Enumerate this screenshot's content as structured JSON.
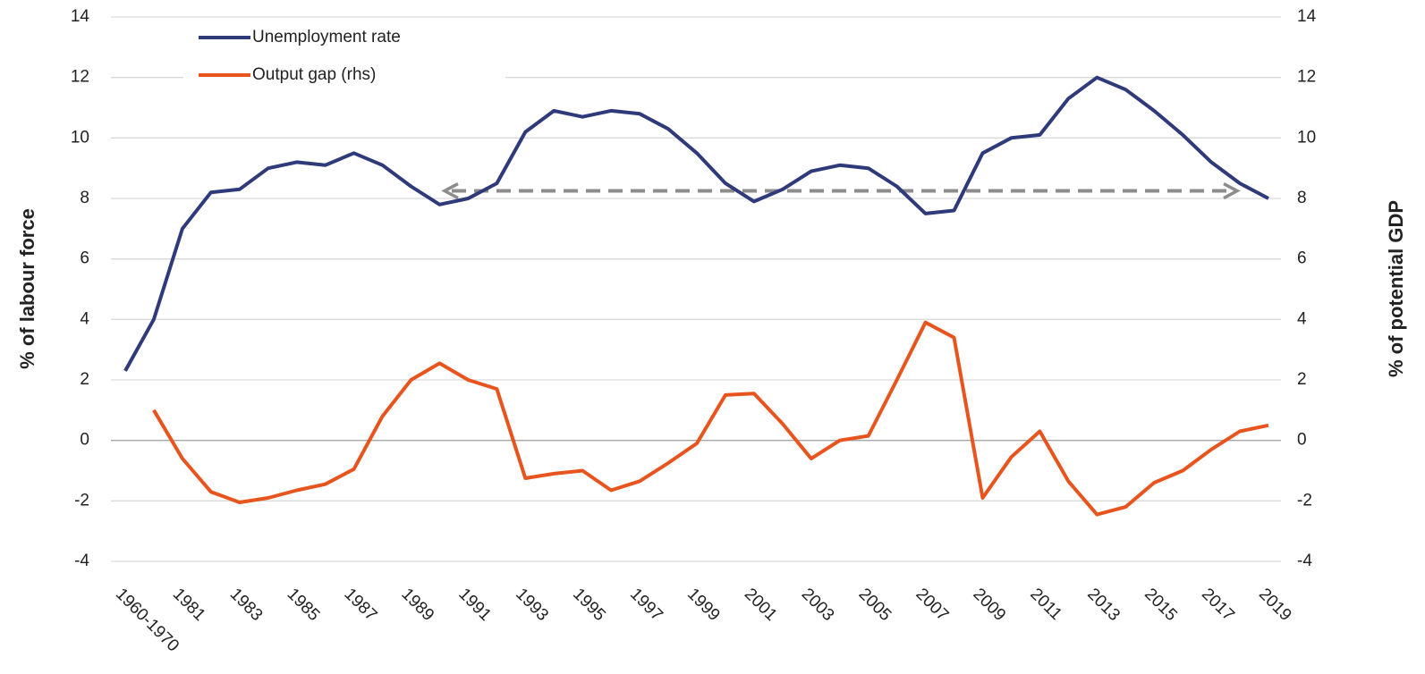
{
  "chart_data": {
    "type": "line",
    "categories": [
      "1960-1970",
      null,
      "1981",
      null,
      "1983",
      null,
      "1985",
      null,
      "1987",
      null,
      "1989",
      null,
      "1991",
      null,
      "1993",
      null,
      "1995",
      null,
      "1997",
      null,
      "1999",
      null,
      "2001",
      null,
      "2003",
      null,
      "2005",
      null,
      "2007",
      null,
      "2009",
      null,
      "2011",
      null,
      "2013",
      null,
      "2015",
      null,
      "2017",
      null,
      "2019"
    ],
    "series": [
      {
        "name": "Unemployment rate",
        "color": "#2e3a7a",
        "values": [
          2.3,
          4.0,
          7.0,
          8.2,
          8.3,
          9.0,
          9.2,
          9.1,
          9.5,
          9.1,
          8.4,
          7.8,
          8.0,
          8.5,
          10.2,
          10.9,
          10.7,
          10.9,
          10.8,
          10.3,
          9.5,
          8.5,
          7.9,
          8.3,
          8.9,
          9.1,
          9.0,
          8.4,
          7.5,
          7.6,
          9.5,
          10.0,
          10.1,
          11.3,
          12.0,
          11.6,
          10.9,
          10.1,
          9.2,
          8.5,
          8.0
        ]
      },
      {
        "name": "Output gap (rhs)",
        "color": "#e8541e",
        "axis": "y2",
        "values": [
          null,
          1.0,
          -0.6,
          -1.7,
          -2.05,
          -1.9,
          -1.65,
          -1.45,
          -0.95,
          0.8,
          2.0,
          2.55,
          2.0,
          1.7,
          -1.25,
          -1.1,
          -1.0,
          -1.65,
          -1.35,
          -0.75,
          -0.1,
          1.5,
          1.55,
          0.55,
          -0.6,
          0.0,
          0.15,
          2.0,
          3.9,
          3.4,
          -1.9,
          -0.55,
          0.3,
          -1.35,
          -2.45,
          -2.2,
          -1.4,
          -1.0,
          -0.3,
          0.3,
          0.5
        ]
      }
    ],
    "ylabel": "% of labour force",
    "y2label": "% of potential GDP",
    "ylim": [
      -4,
      14
    ],
    "yticks": [
      -4,
      -2,
      0,
      2,
      4,
      6,
      8,
      10,
      12,
      14
    ],
    "y2lim": [
      -4,
      14
    ],
    "y2ticks": [
      -4,
      -2,
      0,
      2,
      4,
      6,
      8,
      10,
      12,
      14
    ],
    "grid": true,
    "legend": "upper left"
  }
}
